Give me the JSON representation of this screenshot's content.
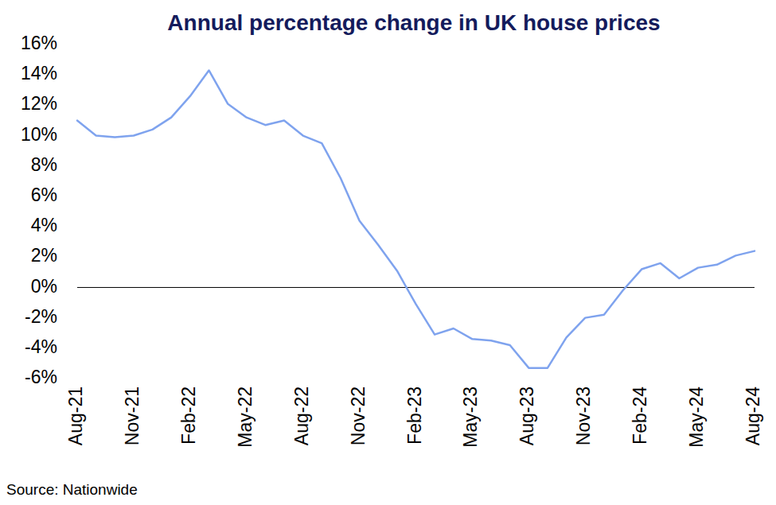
{
  "chart_data": {
    "type": "line",
    "title": "Annual percentage change in UK house prices",
    "source": "Source: Nationwide",
    "categories": [
      "Aug-21",
      null,
      null,
      "Nov-21",
      null,
      null,
      "Feb-22",
      null,
      null,
      "May-22",
      null,
      null,
      "Aug-22",
      null,
      null,
      "Nov-22",
      null,
      null,
      "Feb-23",
      null,
      null,
      "May-23",
      null,
      null,
      "Aug-23",
      null,
      null,
      "Nov-23",
      null,
      null,
      "Feb-24",
      null,
      null,
      "May-24",
      null,
      null,
      "Aug-24"
    ],
    "values": [
      11.0,
      10.0,
      9.9,
      10.0,
      10.4,
      11.2,
      12.6,
      14.3,
      12.1,
      11.2,
      10.7,
      11.0,
      10.0,
      9.5,
      7.2,
      4.4,
      2.8,
      1.1,
      -1.1,
      -3.1,
      -2.7,
      -3.4,
      -3.5,
      -3.8,
      -5.3,
      -5.3,
      -3.3,
      -2.0,
      -1.8,
      -0.2,
      1.2,
      1.6,
      0.6,
      1.3,
      1.5,
      2.1,
      2.4
    ],
    "color": "#7fa3ee",
    "ylim": [
      -6,
      16
    ],
    "yticks": [
      {
        "value": -6,
        "label": "-6%"
      },
      {
        "value": -4,
        "label": "-4%"
      },
      {
        "value": -2,
        "label": "-2%"
      },
      {
        "value": 0,
        "label": "0%"
      },
      {
        "value": 2,
        "label": "2%"
      },
      {
        "value": 4,
        "label": "4%"
      },
      {
        "value": 6,
        "label": "6%"
      },
      {
        "value": 8,
        "label": "8%"
      },
      {
        "value": 10,
        "label": "10%"
      },
      {
        "value": 12,
        "label": "12%"
      },
      {
        "value": 14,
        "label": "14%"
      },
      {
        "value": 16,
        "label": "16%"
      }
    ],
    "grid": false
  }
}
